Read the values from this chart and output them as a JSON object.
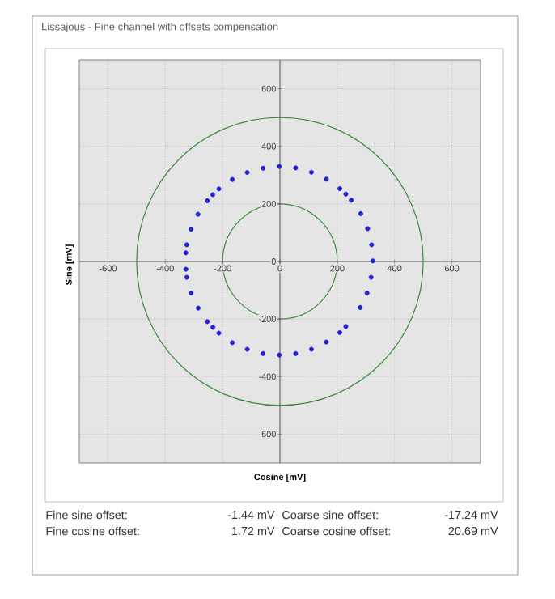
{
  "chart_data": {
    "type": "scatter",
    "title": "Lissajous - Fine channel with offsets compensation",
    "xlabel": "Cosine [mV]",
    "ylabel": "Sine [mV]",
    "xlim": [
      -700,
      700
    ],
    "ylim": [
      -700,
      700
    ],
    "xticks": [
      -600,
      -400,
      -200,
      0,
      200,
      400,
      600
    ],
    "yticks": [
      -600,
      -400,
      -200,
      0,
      200,
      400,
      600
    ],
    "grid": true,
    "marker": "circle",
    "series": [
      {
        "color": "#2222d4",
        "x": [
          324,
          320,
          306,
          282,
          249,
          230,
          209,
          162,
          110,
          55,
          -2,
          -59,
          -114,
          -166,
          -213,
          -234,
          -253,
          -286,
          -310,
          -325,
          -328,
          -328,
          -325,
          -310,
          -285,
          -253,
          -234,
          -213,
          -166,
          -114,
          -59,
          -2,
          55,
          110,
          162,
          209,
          230,
          280,
          304,
          318
        ],
        "values": [
          2,
          58,
          114,
          166,
          213,
          234,
          253,
          286,
          310,
          325,
          330,
          324,
          309,
          285,
          252,
          232,
          211,
          164,
          112,
          58,
          30,
          -27,
          -55,
          -110,
          -162,
          -209,
          -229,
          -249,
          -282,
          -305,
          -320,
          -325,
          -320,
          -305,
          -280,
          -247,
          -226,
          -160,
          -110,
          -55
        ]
      }
    ],
    "annotations": [
      "Fine sine offset:",
      "-1.44 mV",
      "Coarse sine offset:",
      "-17.24 mV",
      "Fine cosine offset:",
      "1.72 mV",
      "Coarse cosine offset:",
      "20.69 mV"
    ]
  }
}
